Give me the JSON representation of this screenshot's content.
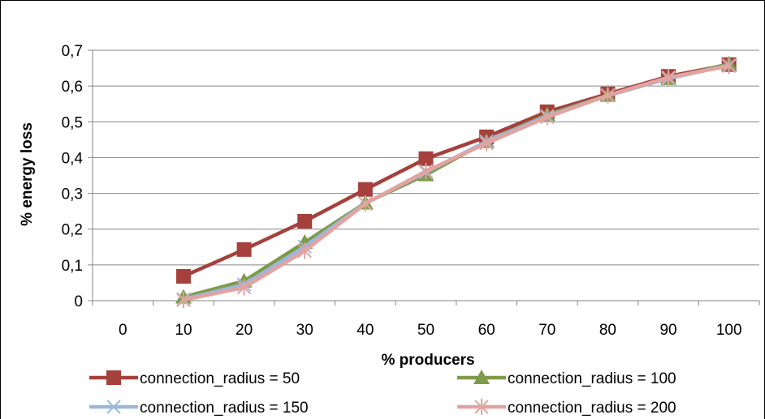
{
  "chart_data": {
    "type": "line",
    "title": "",
    "xlabel": "% producers",
    "ylabel": "% energy loss",
    "categories": [
      "0",
      "10",
      "20",
      "30",
      "40",
      "50",
      "60",
      "70",
      "80",
      "90",
      "100"
    ],
    "ylim": [
      0,
      0.7
    ],
    "yticks": [
      "0",
      "0,1",
      "0,2",
      "0,3",
      "0,4",
      "0,5",
      "0,6",
      "0,7"
    ],
    "grid": true,
    "legend_position": "bottom",
    "series": [
      {
        "name": "connection_radius = 50",
        "color": "#A5403C",
        "marker": "square",
        "values": [
          null,
          0.068,
          0.143,
          0.222,
          0.311,
          0.397,
          0.458,
          0.528,
          0.578,
          0.627,
          0.66
        ]
      },
      {
        "name": "connection_radius = 100",
        "color": "#7E9A4A",
        "marker": "triangle",
        "values": [
          null,
          0.01,
          0.055,
          0.163,
          0.273,
          0.352,
          0.445,
          0.52,
          0.574,
          0.621,
          0.662
        ]
      },
      {
        "name": "connection_radius = 150",
        "color": "#9BB7DA",
        "marker": "x",
        "values": [
          null,
          0.004,
          0.045,
          0.151,
          0.272,
          0.359,
          0.445,
          0.516,
          0.573,
          0.621,
          0.658
        ]
      },
      {
        "name": "connection_radius = 200",
        "color": "#E3A3A0",
        "marker": "asterisk",
        "values": [
          null,
          0.002,
          0.037,
          0.139,
          0.271,
          0.362,
          0.44,
          0.513,
          0.574,
          0.624,
          0.656
        ]
      }
    ]
  }
}
